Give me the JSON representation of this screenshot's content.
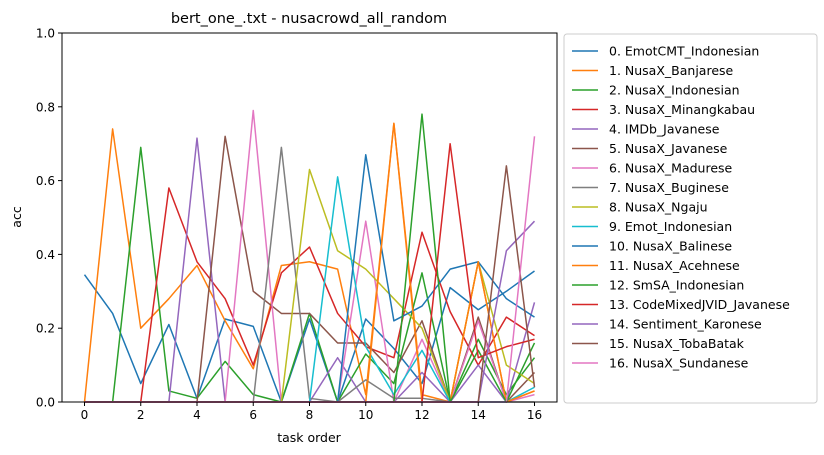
{
  "chart_data": {
    "type": "line",
    "title": "bert_one_.txt - nusacrowd_all_random",
    "xlabel": "task order",
    "ylabel": "acc",
    "xlim": [
      -0.8,
      16.8
    ],
    "ylim": [
      0,
      1.0
    ],
    "x_ticks": [
      "0",
      "2",
      "4",
      "6",
      "8",
      "10",
      "12",
      "14",
      "16"
    ],
    "y_ticks": [
      "0.0",
      "0.2",
      "0.4",
      "0.6",
      "0.8",
      "1.0"
    ],
    "legend_position": "outside-right",
    "grid": false,
    "x": [
      0,
      1,
      2,
      3,
      4,
      5,
      6,
      7,
      8,
      9,
      10,
      11,
      12,
      13,
      14,
      15,
      16
    ],
    "series": [
      {
        "name": "0. EmotCMT_Indonesian",
        "color": "#1f77b4",
        "values": [
          0.345,
          0.24,
          0.05,
          0.21,
          0.01,
          0.225,
          0.205,
          0.0,
          0.225,
          0.0,
          0.225,
          0.145,
          0.05,
          0.31,
          0.25,
          0.3,
          0.355
        ]
      },
      {
        "name": "1. NusaX_Banjarese",
        "color": "#ff7f0e",
        "values": [
          0.0,
          0.74,
          0.2,
          0.28,
          0.37,
          0.22,
          0.09,
          0.37,
          0.38,
          0.36,
          0.02,
          0.755,
          0.02,
          0.0,
          0.38,
          0.0,
          0.03
        ]
      },
      {
        "name": "2. NusaX_Indonesian",
        "color": "#2ca02c",
        "values": [
          0.0,
          0.0,
          0.69,
          0.03,
          0.01,
          0.11,
          0.02,
          0.0,
          0.24,
          0.0,
          0.13,
          0.05,
          0.35,
          0.0,
          0.17,
          0.02,
          0.12
        ]
      },
      {
        "name": "3. NusaX_Minangkabau",
        "color": "#d62728",
        "values": [
          0.0,
          0.0,
          0.0,
          0.58,
          0.38,
          0.28,
          0.1,
          0.35,
          0.42,
          0.24,
          0.15,
          0.12,
          0.46,
          0.245,
          0.1,
          0.23,
          0.18
        ]
      },
      {
        "name": "4. IMDb_Javanese",
        "color": "#9467bd",
        "values": [
          0.0,
          0.0,
          0.0,
          0.0,
          0.715,
          0.0,
          0.0,
          0.0,
          0.0,
          0.12,
          0.0,
          0.0,
          0.08,
          0.0,
          0.1,
          0.0,
          0.27
        ]
      },
      {
        "name": "5. NusaX_Javanese",
        "color": "#8c564b",
        "values": [
          0.0,
          0.0,
          0.0,
          0.0,
          0.0,
          0.72,
          0.3,
          0.24,
          0.24,
          0.16,
          0.16,
          0.08,
          0.22,
          0.0,
          0.23,
          0.0,
          0.08
        ]
      },
      {
        "name": "6. NusaX_Madurese",
        "color": "#e377c2",
        "values": [
          0.0,
          0.0,
          0.0,
          0.0,
          0.0,
          0.0,
          0.79,
          0.0,
          0.0,
          0.0,
          0.49,
          0.0,
          0.17,
          0.0,
          0.22,
          0.0,
          0.02
        ]
      },
      {
        "name": "7. NusaX_Buginese",
        "color": "#7f7f7f",
        "values": [
          0.0,
          0.0,
          0.0,
          0.0,
          0.0,
          0.0,
          0.0,
          0.69,
          0.01,
          0.0,
          0.06,
          0.01,
          0.01,
          0.0,
          0.0,
          0.0,
          0.0
        ]
      },
      {
        "name": "8. NusaX_Ngaju",
        "color": "#bcbd22",
        "values": [
          0.0,
          0.0,
          0.0,
          0.0,
          0.0,
          0.0,
          0.0,
          0.0,
          0.63,
          0.41,
          0.36,
          0.28,
          0.2,
          0.0,
          0.38,
          0.1,
          0.05
        ]
      },
      {
        "name": "9. Emot_Indonesian",
        "color": "#17becf",
        "values": [
          0.0,
          0.0,
          0.0,
          0.0,
          0.0,
          0.0,
          0.0,
          0.0,
          0.0,
          0.61,
          0.15,
          0.02,
          0.14,
          0.0,
          0.0,
          0.0,
          0.04
        ]
      },
      {
        "name": "10. NusaX_Balinese",
        "color": "#1f77b4",
        "values": [
          0.0,
          0.0,
          0.0,
          0.0,
          0.0,
          0.0,
          0.0,
          0.0,
          0.0,
          0.0,
          0.67,
          0.22,
          0.26,
          0.36,
          0.38,
          0.28,
          0.23
        ]
      },
      {
        "name": "11. NusaX_Acehnese",
        "color": "#ff7f0e",
        "values": [
          0.0,
          0.0,
          0.0,
          0.0,
          0.0,
          0.0,
          0.0,
          0.0,
          0.0,
          0.0,
          0.0,
          0.755,
          0.0,
          0.0,
          0.38,
          0.0,
          0.03
        ]
      },
      {
        "name": "12. SmSA_Indonesian",
        "color": "#2ca02c",
        "values": [
          0.0,
          0.0,
          0.0,
          0.0,
          0.0,
          0.0,
          0.0,
          0.0,
          0.0,
          0.0,
          0.0,
          0.0,
          0.78,
          0.0,
          0.14,
          0.0,
          0.16
        ]
      },
      {
        "name": "13. CodeMixedJVID_Javanese",
        "color": "#d62728",
        "values": [
          0.0,
          0.0,
          0.0,
          0.0,
          0.0,
          0.0,
          0.0,
          0.0,
          0.0,
          0.0,
          0.0,
          0.0,
          0.0,
          0.7,
          0.12,
          0.15,
          0.17
        ]
      },
      {
        "name": "14. Sentiment_Karonese",
        "color": "#9467bd",
        "values": [
          0.0,
          0.0,
          0.0,
          0.0,
          0.0,
          0.0,
          0.0,
          0.0,
          0.0,
          0.0,
          0.0,
          0.0,
          0.0,
          0.0,
          0.0,
          0.41,
          0.49
        ]
      },
      {
        "name": "15. NusaX_TobaBatak",
        "color": "#8c564b",
        "values": [
          0.0,
          0.0,
          0.0,
          0.0,
          0.0,
          0.0,
          0.0,
          0.0,
          0.0,
          0.0,
          0.0,
          0.0,
          0.0,
          0.0,
          0.0,
          0.64,
          0.04
        ]
      },
      {
        "name": "16. NusaX_Sundanese",
        "color": "#e377c2",
        "values": [
          0.0,
          0.0,
          0.0,
          0.0,
          0.0,
          0.0,
          0.0,
          0.0,
          0.0,
          0.0,
          0.0,
          0.0,
          0.0,
          0.0,
          0.0,
          0.0,
          0.72
        ]
      }
    ]
  }
}
